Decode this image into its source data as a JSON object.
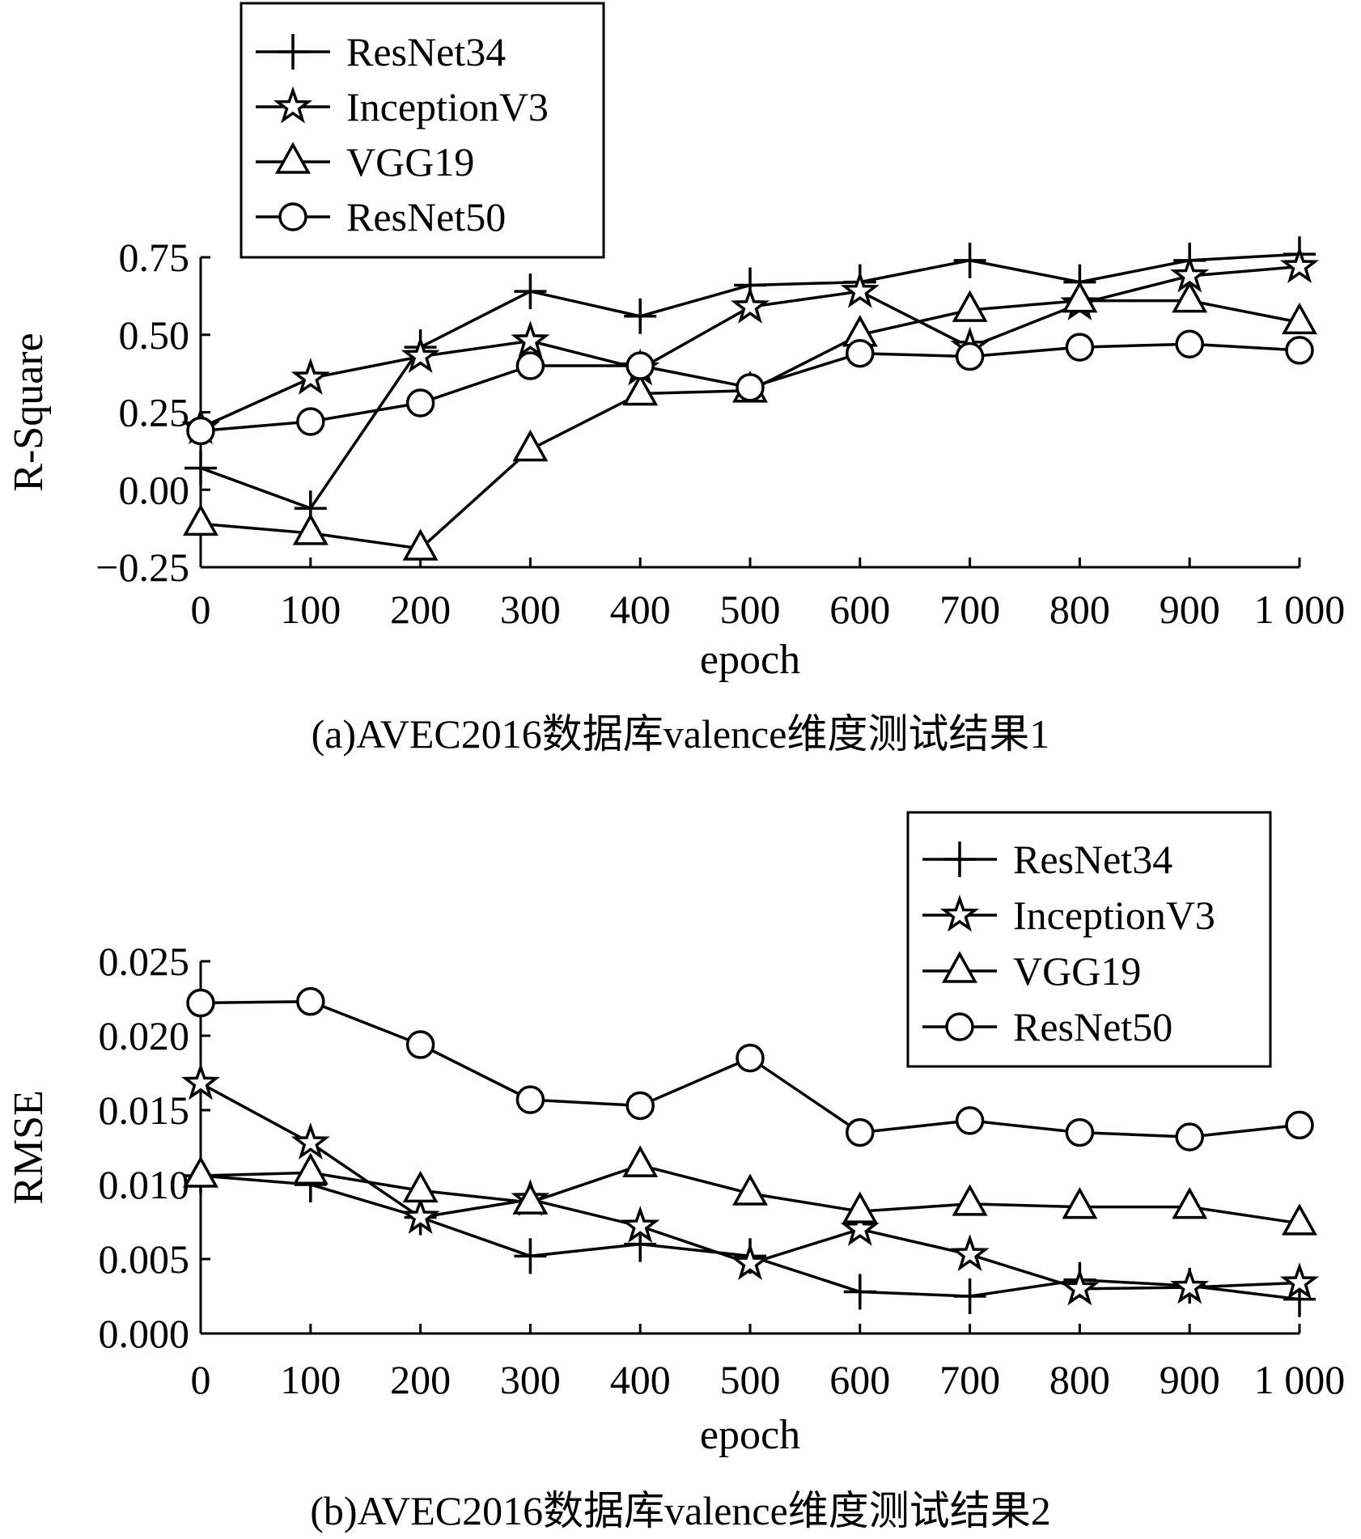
{
  "chart_data": [
    {
      "type": "line",
      "caption": "(a)AVEC2016数据库valence维度测试结果1",
      "xlabel": "epoch",
      "ylabel": "R-Square",
      "x": [
        0,
        100,
        200,
        300,
        400,
        500,
        600,
        700,
        800,
        900,
        1000
      ],
      "xticks": [
        "0",
        "100",
        "200",
        "300",
        "400",
        "500",
        "600",
        "700",
        "800",
        "900",
        "1 000"
      ],
      "xlim": [
        0,
        1000
      ],
      "ylim": [
        -0.25,
        0.75
      ],
      "yticks": [
        "−0.25",
        "0.00",
        "0.25",
        "0.50",
        "0.75"
      ],
      "ytick_values": [
        -0.25,
        0,
        0.25,
        0.5,
        0.75
      ],
      "grid": false,
      "legend_position": "top-left",
      "series": [
        {
          "name": "ResNet34",
          "marker": "plus",
          "values": [
            0.07,
            -0.06,
            0.46,
            0.64,
            0.56,
            0.66,
            0.67,
            0.74,
            0.67,
            0.74,
            0.76
          ]
        },
        {
          "name": "InceptionV3",
          "marker": "star",
          "values": [
            0.2,
            0.36,
            0.43,
            0.48,
            0.39,
            0.59,
            0.64,
            0.46,
            0.6,
            0.69,
            0.72
          ]
        },
        {
          "name": "VGG19",
          "marker": "triangle",
          "values": [
            -0.11,
            -0.14,
            -0.19,
            0.13,
            0.31,
            0.32,
            0.5,
            0.58,
            0.61,
            0.61,
            0.54
          ]
        },
        {
          "name": "ResNet50",
          "marker": "circle",
          "values": [
            0.19,
            0.22,
            0.28,
            0.4,
            0.4,
            0.33,
            0.44,
            0.43,
            0.46,
            0.47,
            0.45
          ]
        }
      ]
    },
    {
      "type": "line",
      "caption": "(b)AVEC2016数据库valence维度测试结果2",
      "xlabel": "epoch",
      "ylabel": "RMSE",
      "x": [
        0,
        100,
        200,
        300,
        400,
        500,
        600,
        700,
        800,
        900,
        1000
      ],
      "xticks": [
        "0",
        "100",
        "200",
        "300",
        "400",
        "500",
        "600",
        "700",
        "800",
        "900",
        "1 000"
      ],
      "xlim": [
        0,
        1000
      ],
      "ylim": [
        0,
        0.025
      ],
      "yticks": [
        "0.000",
        "0.005",
        "0.010",
        "0.015",
        "0.020",
        "0.025"
      ],
      "ytick_values": [
        0,
        0.005,
        0.01,
        0.015,
        0.02,
        0.025
      ],
      "grid": false,
      "legend_position": "top-right",
      "series": [
        {
          "name": "ResNet34",
          "marker": "plus",
          "values": [
            0.0106,
            0.01,
            0.0078,
            0.0052,
            0.006,
            0.0052,
            0.0028,
            0.0025,
            0.0036,
            0.0032,
            0.0023
          ]
        },
        {
          "name": "InceptionV3",
          "marker": "star",
          "values": [
            0.0168,
            0.0128,
            0.0078,
            0.009,
            0.0072,
            0.0047,
            0.007,
            0.0053,
            0.003,
            0.0031,
            0.0034
          ]
        },
        {
          "name": "VGG19",
          "marker": "triangle",
          "values": [
            0.0106,
            0.0108,
            0.0096,
            0.0088,
            0.0113,
            0.0094,
            0.0082,
            0.0087,
            0.0085,
            0.0085,
            0.0074
          ]
        },
        {
          "name": "ResNet50",
          "marker": "circle",
          "values": [
            0.0222,
            0.0223,
            0.0194,
            0.0157,
            0.0153,
            0.0185,
            0.0135,
            0.0143,
            0.0135,
            0.0132,
            0.014
          ]
        }
      ]
    }
  ]
}
